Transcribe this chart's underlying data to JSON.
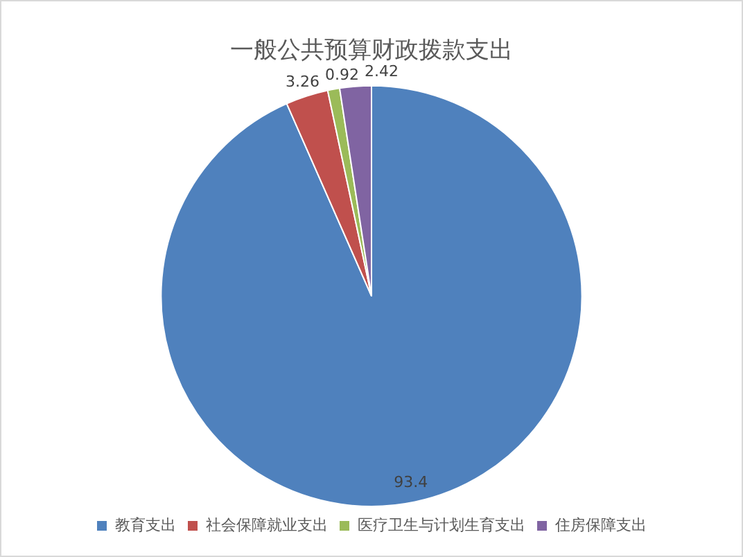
{
  "chart_data": {
    "type": "pie",
    "title": "一般公共预算财政拨款支出",
    "categories": [
      "教育支出",
      "社会保障就业支出",
      "医疗卫生与计划生育支出",
      "住房保障支出"
    ],
    "values": [
      93.4,
      3.26,
      0.92,
      2.42
    ],
    "colors": [
      "#4f81bd",
      "#c0504d",
      "#9bbb59",
      "#8064a2"
    ],
    "data_labels": true,
    "legend": "bottom"
  }
}
